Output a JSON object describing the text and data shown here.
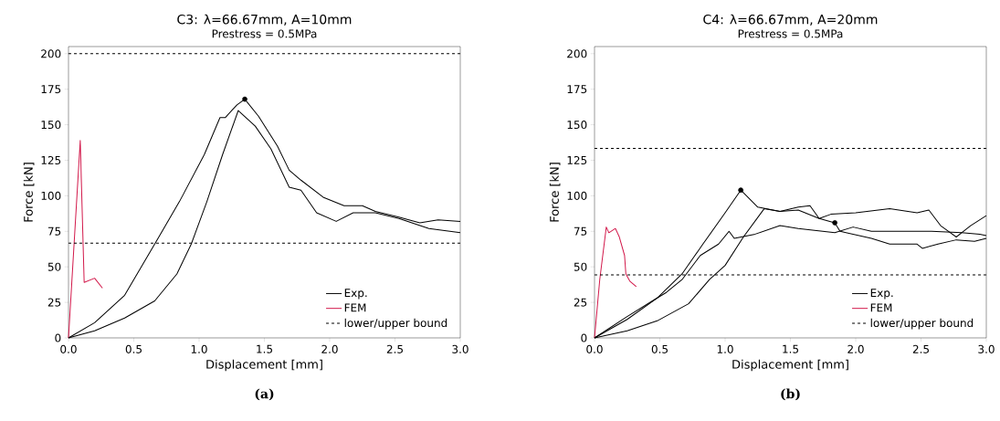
{
  "chart_data": [
    {
      "type": "line",
      "title": "C3: λ=66.67mm, A=10mm",
      "subtitle": "Prestress = 0.5MPa",
      "xlabel": "Displacement [mm]",
      "ylabel": "Force [kN]",
      "annotations": [
        "(a)"
      ],
      "xlim": [
        0,
        3
      ],
      "ylim": [
        0,
        205
      ],
      "xticks": [
        {
          "value": 0,
          "label": "0.0"
        },
        0.5,
        {
          "value": 1,
          "label": "1.0"
        },
        1.5,
        {
          "value": 2,
          "label": "2.0"
        },
        2.5,
        {
          "value": 3,
          "label": "3.0"
        }
      ],
      "yticks": [
        0,
        25,
        50,
        75,
        100,
        125,
        150,
        175,
        200
      ],
      "legend": "bottom right",
      "series": [
        {
          "name": "Exp.",
          "color": "#000000",
          "x": [
            0,
            0.2,
            0.43,
            0.66,
            0.85,
            1.04,
            1.16,
            1.2,
            1.29,
            1.35,
            1.455,
            1.6,
            1.69,
            1.78,
            1.95,
            2.11,
            2.25,
            2.35,
            2.53,
            2.69,
            2.83,
            3.0
          ],
          "values": [
            0,
            10.7,
            30,
            66,
            96,
            129,
            155,
            155,
            164,
            168,
            156,
            135,
            118,
            111,
            99,
            93,
            93,
            89,
            85,
            81,
            83,
            82
          ]
        },
        {
          "name": "FEM",
          "color": "#d2184a",
          "x": [
            0,
            0.09,
            0.12,
            0.2,
            0.26
          ],
          "values": [
            0,
            139,
            39,
            42,
            35
          ]
        },
        {
          "color": "#000000",
          "x": [
            0,
            0.2,
            0.43,
            0.66,
            0.83,
            0.94,
            1.06,
            1.18,
            1.3,
            1.43,
            1.55,
            1.69,
            1.78,
            1.9,
            2.05,
            2.18,
            2.35,
            2.53,
            2.76,
            3.0
          ],
          "values": [
            0,
            5,
            14,
            26,
            45,
            66,
            96,
            129,
            160,
            149,
            133,
            106,
            104,
            88,
            82,
            88,
            88,
            84,
            77,
            74
          ]
        },
        {
          "type": "scatter",
          "color": "#000000",
          "x": [
            1.35
          ],
          "values": [
            168
          ]
        }
      ],
      "ref_lines": [
        {
          "axis": "y",
          "value": 200,
          "label": "lower/upper bound",
          "line_style": "dashed",
          "color": "#000000"
        },
        {
          "axis": "y",
          "value": 66.7,
          "line_style": "dashed",
          "color": "#000000"
        }
      ]
    },
    {
      "type": "line",
      "title": "C4: λ=66.67mm, A=20mm",
      "subtitle": "Prestress = 0.5MPa",
      "xlabel": "Displacement [mm]",
      "ylabel": "Force [kN]",
      "annotations": [
        "(b)"
      ],
      "xlim": [
        0,
        3
      ],
      "ylim": [
        0,
        205
      ],
      "xticks": [
        {
          "value": 0,
          "label": "0.0"
        },
        0.5,
        {
          "value": 1,
          "label": "1.0"
        },
        1.5,
        {
          "value": 2,
          "label": "2.0"
        },
        2.5,
        {
          "value": 3,
          "label": "3.0"
        }
      ],
      "yticks": [
        0,
        25,
        50,
        75,
        100,
        125,
        150,
        175,
        200
      ],
      "legend": "bottom right",
      "series": [
        {
          "name": "Exp.",
          "color": "#000000",
          "x": [
            0,
            0.25,
            0.48,
            0.67,
            0.83,
            1.0,
            1.12,
            1.25,
            1.42,
            1.56,
            1.72,
            1.84,
            1.88,
            2.12,
            2.26,
            2.47,
            2.51,
            2.63,
            2.77,
            2.91,
            3.0
          ],
          "values": [
            0,
            13,
            28,
            45,
            66,
            88,
            104,
            92,
            89,
            90,
            84,
            81,
            75,
            70,
            66,
            66,
            63,
            66,
            69,
            68,
            70
          ]
        },
        {
          "name": "FEM",
          "color": "#d2184a",
          "x": [
            0,
            0.04,
            0.09,
            0.11,
            0.16,
            0.19,
            0.23,
            0.24,
            0.27,
            0.32
          ],
          "values": [
            0,
            41,
            78,
            74,
            77,
            71,
            58,
            45,
            40,
            36
          ]
        },
        {
          "color": "#000000",
          "x": [
            0,
            0.25,
            0.46,
            0.55,
            0.67,
            0.81,
            0.95,
            1.03,
            1.07,
            1.23,
            1.42,
            1.56,
            1.84,
            1.98,
            2.12,
            2.58,
            2.81,
            2.95,
            3.0
          ],
          "values": [
            0,
            15,
            27,
            32,
            41,
            58,
            66,
            75,
            70,
            73,
            79,
            77,
            74,
            78,
            75,
            75,
            74,
            73,
            72
          ]
        },
        {
          "color": "#000000",
          "x": [
            0,
            0.25,
            0.48,
            0.72,
            0.88,
            1.0,
            1.14,
            1.3,
            1.42,
            1.56,
            1.65,
            1.72,
            1.81,
            2.0,
            2.26,
            2.47,
            2.56,
            2.65,
            2.77,
            2.88,
            3.0
          ],
          "values": [
            0,
            5,
            12,
            24,
            41,
            51,
            71,
            91,
            89,
            92,
            93,
            84,
            87,
            88,
            91,
            88,
            90,
            79,
            71,
            79,
            86
          ]
        },
        {
          "type": "scatter",
          "color": "#000000",
          "x": [
            1.12,
            1.84
          ],
          "values": [
            104,
            81
          ]
        }
      ],
      "ref_lines": [
        {
          "axis": "y",
          "value": 133.3,
          "label": "lower/upper bound",
          "line_style": "dashed",
          "color": "#000000"
        },
        {
          "axis": "y",
          "value": 44.4,
          "line_style": "dashed",
          "color": "#000000"
        }
      ]
    }
  ]
}
